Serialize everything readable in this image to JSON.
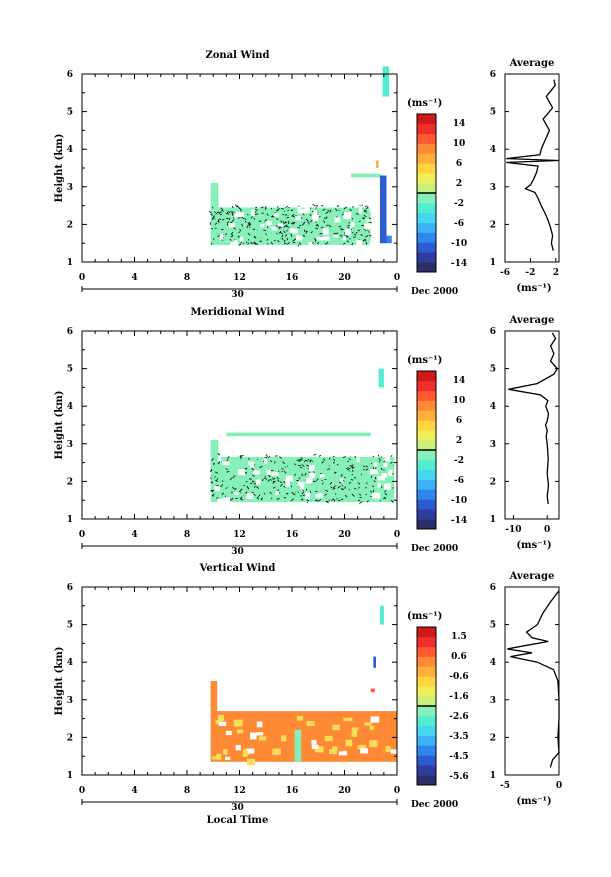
{
  "chart_data": [
    {
      "type": "heatmap",
      "title": "Zonal Wind",
      "ylabel": "Height (km)",
      "xlabel": "",
      "x_ticks": [
        "0",
        "4",
        "8",
        "12",
        "16",
        "20",
        "0"
      ],
      "xlim": [
        0,
        24
      ],
      "y_ticks": [
        "1",
        "2",
        "3",
        "4",
        "5",
        "6"
      ],
      "ylim": [
        1,
        6
      ],
      "date_day": "30",
      "date_label": "Dec 2000",
      "colorbar": {
        "unit": "(ms⁻¹)",
        "ticks": [
          "14",
          "10",
          "6",
          "2",
          "-2",
          "-6",
          "-10",
          "-14"
        ],
        "min": -16,
        "max": 16
      },
      "blocks": [
        {
          "t0": 9.8,
          "t1": 22.0,
          "h0": 1.45,
          "h1": 2.45,
          "v": -1.0
        },
        {
          "t0": 9.8,
          "t1": 10.4,
          "h0": 2.45,
          "h1": 3.1,
          "v": -1.5
        },
        {
          "t0": 20.5,
          "t1": 22.8,
          "h0": 3.25,
          "h1": 3.35,
          "v": -1.0
        },
        {
          "t0": 22.4,
          "t1": 22.6,
          "h0": 3.5,
          "h1": 3.7,
          "v": 6.5
        },
        {
          "t0": 22.7,
          "t1": 23.2,
          "h0": 1.5,
          "h1": 3.3,
          "v": -12.0
        },
        {
          "t0": 23.2,
          "t1": 23.6,
          "h0": 1.5,
          "h1": 1.7,
          "v": -9.0
        },
        {
          "t0": 22.9,
          "t1": 23.4,
          "h0": 5.4,
          "h1": 6.2,
          "v": -2.5
        }
      ],
      "contour_region": {
        "t0": 9.8,
        "t1": 22.0,
        "h0": 1.45,
        "h1": 2.5
      },
      "profile": {
        "title": "Average",
        "x_ticks": [
          "-6",
          "-2",
          "2"
        ],
        "xlim": [
          -6,
          2.5
        ],
        "xlabel": "(ms⁻¹)",
        "points": [
          [
            1.6,
            1.3
          ],
          [
            1.3,
            1.5
          ],
          [
            1.5,
            1.7
          ],
          [
            1.2,
            1.9
          ],
          [
            0.8,
            2.1
          ],
          [
            0.3,
            2.3
          ],
          [
            -0.3,
            2.5
          ],
          [
            -0.8,
            2.7
          ],
          [
            -1.3,
            2.85
          ],
          [
            -2.8,
            2.95
          ],
          [
            -2.0,
            3.05
          ],
          [
            -1.5,
            3.2
          ],
          [
            -1.0,
            3.4
          ],
          [
            -0.8,
            3.55
          ],
          [
            -5.8,
            3.65
          ],
          [
            2.4,
            3.7
          ],
          [
            -5.8,
            3.75
          ],
          [
            -0.5,
            3.85
          ],
          [
            -0.3,
            4.0
          ],
          [
            0.2,
            4.2
          ],
          [
            1.0,
            4.5
          ],
          [
            0.0,
            4.8
          ],
          [
            1.5,
            5.1
          ],
          [
            0.5,
            5.4
          ],
          [
            1.9,
            5.7
          ],
          [
            1.7,
            5.85
          ]
        ]
      }
    },
    {
      "type": "heatmap",
      "title": "Meridional Wind",
      "ylabel": "Height (km)",
      "xlabel": "",
      "x_ticks": [
        "0",
        "4",
        "8",
        "12",
        "16",
        "20",
        "0"
      ],
      "xlim": [
        0,
        24
      ],
      "y_ticks": [
        "1",
        "2",
        "3",
        "4",
        "5",
        "6"
      ],
      "ylim": [
        1,
        6
      ],
      "date_day": "30",
      "date_label": "Dec 2000",
      "colorbar": {
        "unit": "(ms⁻¹)",
        "ticks": [
          "14",
          "10",
          "6",
          "2",
          "-2",
          "-6",
          "-10",
          "-14"
        ],
        "min": -16,
        "max": 16
      },
      "blocks": [
        {
          "t0": 9.8,
          "t1": 23.8,
          "h0": 1.45,
          "h1": 2.65,
          "v": -1.0
        },
        {
          "t0": 9.8,
          "t1": 10.4,
          "h0": 2.65,
          "h1": 3.1,
          "v": -1.5
        },
        {
          "t0": 11.0,
          "t1": 22.0,
          "h0": 3.2,
          "h1": 3.3,
          "v": -1.0
        },
        {
          "t0": 22.6,
          "t1": 23.0,
          "h0": 4.5,
          "h1": 5.0,
          "v": -3.0
        }
      ],
      "contour_region": {
        "t0": 9.8,
        "t1": 23.8,
        "h0": 1.45,
        "h1": 2.7
      },
      "profile": {
        "title": "Average",
        "x_ticks": [
          "-10",
          "0"
        ],
        "xlim": [
          -12.5,
          3.5
        ],
        "xlabel": "(ms⁻¹)",
        "points": [
          [
            0.3,
            1.4
          ],
          [
            0.0,
            1.6
          ],
          [
            0.4,
            1.9
          ],
          [
            0.0,
            2.2
          ],
          [
            0.3,
            2.6
          ],
          [
            0.0,
            3.0
          ],
          [
            -0.3,
            3.2
          ],
          [
            0.0,
            3.35
          ],
          [
            -0.5,
            3.5
          ],
          [
            0.0,
            3.6
          ],
          [
            0.4,
            3.8
          ],
          [
            -0.4,
            4.0
          ],
          [
            0.2,
            4.15
          ],
          [
            -2.0,
            4.3
          ],
          [
            -11.5,
            4.45
          ],
          [
            -3.0,
            4.6
          ],
          [
            0.0,
            4.75
          ],
          [
            2.0,
            4.85
          ],
          [
            3.0,
            5.0
          ],
          [
            1.0,
            5.2
          ],
          [
            2.0,
            5.4
          ],
          [
            1.0,
            5.6
          ],
          [
            2.5,
            5.8
          ],
          [
            1.5,
            5.95
          ]
        ]
      }
    },
    {
      "type": "heatmap",
      "title": "Vertical Wind",
      "ylabel": "Height (km)",
      "xlabel": "Local Time",
      "x_ticks": [
        "0",
        "4",
        "8",
        "12",
        "16",
        "20",
        "0"
      ],
      "xlim": [
        0,
        24
      ],
      "y_ticks": [
        "1",
        "2",
        "3",
        "4",
        "5",
        "6"
      ],
      "ylim": [
        1,
        6
      ],
      "date_day": "30",
      "date_label": "Dec 2000",
      "colorbar": {
        "unit": "(ms⁻¹)",
        "ticks": [
          "1.5",
          "0.6",
          "-0.6",
          "-1.6",
          "-2.6",
          "-3.5",
          "-4.5",
          "-5.6"
        ],
        "min": -6,
        "max": 2
      },
      "blocks": [
        {
          "t0": 9.8,
          "t1": 24.0,
          "h0": 1.35,
          "h1": 2.7,
          "v": 0.4
        },
        {
          "t0": 9.8,
          "t1": 10.3,
          "h0": 2.7,
          "h1": 3.5,
          "v": 0.3
        },
        {
          "t0": 16.2,
          "t1": 16.7,
          "h0": 1.35,
          "h1": 2.2,
          "v": -2.4
        },
        {
          "t0": 22.0,
          "t1": 22.3,
          "h0": 3.2,
          "h1": 3.3,
          "v": 0.6
        },
        {
          "t0": 22.7,
          "t1": 23.0,
          "h0": 5.0,
          "h1": 5.5,
          "v": -2.6
        },
        {
          "t0": 22.2,
          "t1": 22.4,
          "h0": 3.85,
          "h1": 4.15,
          "v": -5.0
        }
      ],
      "contour_region": null,
      "profile": {
        "title": "Average",
        "x_ticks": [
          "-5",
          "0"
        ],
        "xlim": [
          -5,
          0
        ],
        "xlabel": "(ms⁻¹)",
        "points": [
          [
            -0.8,
            1.2
          ],
          [
            -0.6,
            1.4
          ],
          [
            0.0,
            1.6
          ],
          [
            -0.1,
            2.0
          ],
          [
            0.0,
            2.5
          ],
          [
            0.0,
            3.0
          ],
          [
            -0.1,
            3.5
          ],
          [
            -0.5,
            3.8
          ],
          [
            -2.0,
            4.0
          ],
          [
            -4.5,
            4.15
          ],
          [
            -2.5,
            4.25
          ],
          [
            -4.8,
            4.35
          ],
          [
            -3.0,
            4.45
          ],
          [
            -1.0,
            4.55
          ],
          [
            -2.5,
            4.65
          ],
          [
            -3.0,
            4.8
          ],
          [
            -2.0,
            5.0
          ],
          [
            -1.5,
            5.3
          ],
          [
            -0.8,
            5.6
          ],
          [
            0.0,
            5.9
          ]
        ]
      }
    }
  ]
}
